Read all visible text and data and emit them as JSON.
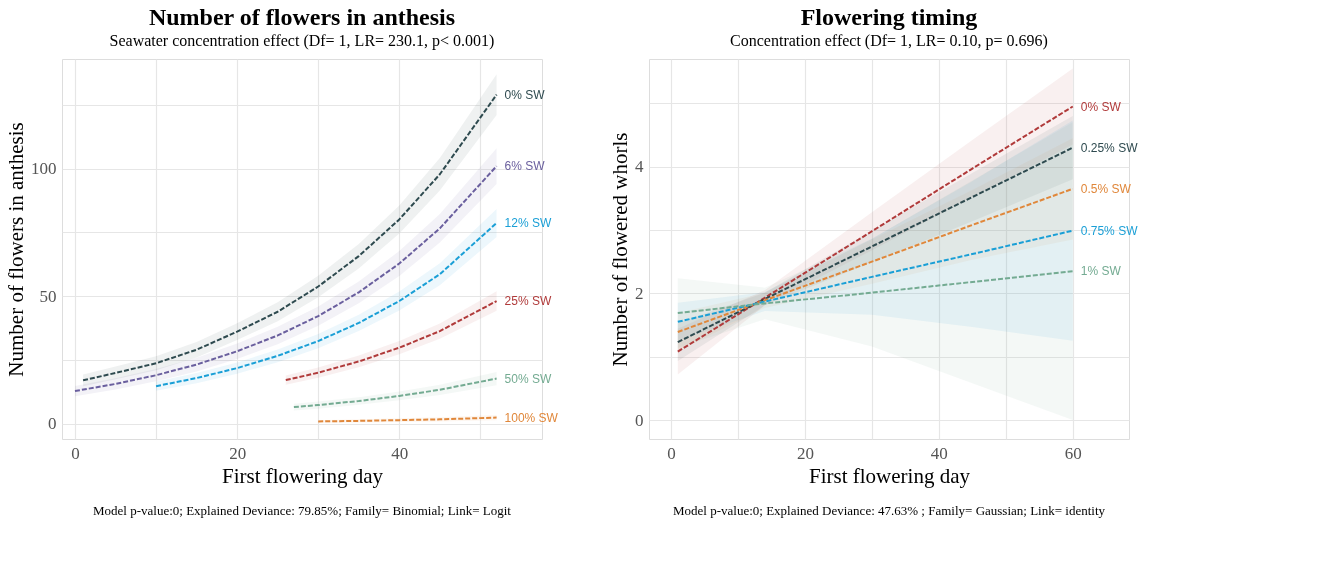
{
  "chart_data": [
    {
      "type": "line",
      "title": "Number of flowers in anthesis",
      "subtitle": "Seawater concentration effect (Df= 1, LR= 230.1, p< 0.001)",
      "xlabel": "First flowering day",
      "ylabel": "Number of flowers in anthesis",
      "annotations": [
        "Model p-value:0; Explained Deviance: 79.85%; Family= Binomial; Link= Logit"
      ],
      "xlim": [
        -1.6,
        57.6
      ],
      "ylim": [
        -6,
        143
      ],
      "xticks": [
        0,
        {
          "value": 10,
          "label": null
        },
        20,
        {
          "value": 30,
          "label": null
        },
        40,
        {
          "value": 50,
          "label": null
        }
      ],
      "yticks": [
        0,
        {
          "value": 25,
          "label": null
        },
        50,
        {
          "value": 75,
          "label": null
        },
        100,
        {
          "value": 125,
          "label": null
        }
      ],
      "grid": true,
      "legend": false,
      "line_style": "dashed",
      "series": [
        {
          "name": "0% SW",
          "color": "#2e4a4f",
          "x": [
            1,
            5,
            10,
            15,
            20,
            25,
            30,
            35,
            40,
            45,
            52
          ],
          "values": [
            17,
            19.9,
            23.7,
            29.0,
            36.1,
            43.9,
            53.8,
            65.7,
            80.1,
            97.8,
            129
          ],
          "lower": [
            14.7,
            17.4,
            21.0,
            26.0,
            32.8,
            40.2,
            49.6,
            60.9,
            74.6,
            91.4,
            121
          ],
          "upper": [
            19.3,
            22.4,
            26.4,
            32.0,
            39.4,
            47.6,
            58.0,
            70.5,
            85.6,
            104.2,
            137
          ]
        },
        {
          "name": "6% SW",
          "color": "#6a5f9e",
          "x": [
            0,
            5,
            10,
            15,
            20,
            25,
            30,
            35,
            40,
            45,
            52
          ],
          "values": [
            12.8,
            15.6,
            19.0,
            23.2,
            28.4,
            34.6,
            42.2,
            51.5,
            62.8,
            76.6,
            101
          ],
          "lower": [
            10.8,
            13.4,
            16.6,
            20.5,
            25.4,
            31.2,
            38.4,
            47.2,
            57.9,
            71.0,
            94
          ],
          "upper": [
            14.8,
            17.8,
            21.4,
            25.9,
            31.4,
            38.0,
            46.0,
            55.8,
            67.7,
            82.2,
            108
          ]
        },
        {
          "name": "12% SW",
          "color": "#1a9fd6",
          "x": [
            10,
            15,
            20,
            25,
            30,
            35,
            40,
            45,
            52
          ],
          "values": [
            14.7,
            17.9,
            21.8,
            26.6,
            32.4,
            39.5,
            48.1,
            58.6,
            78.7
          ],
          "lower": [
            12.9,
            15.9,
            19.6,
            24.1,
            29.6,
            36.3,
            44.4,
            54.3,
            73.2
          ],
          "upper": [
            16.5,
            19.9,
            24.0,
            29.1,
            35.2,
            42.7,
            51.8,
            62.9,
            84.2
          ]
        },
        {
          "name": "25% SW",
          "color": "#b03a3a",
          "x": [
            26,
            30,
            35,
            40,
            45,
            52
          ],
          "values": [
            17.1,
            20.0,
            24.4,
            29.8,
            36.3,
            48.1
          ],
          "lower": [
            15.3,
            18.0,
            22.1,
            27.2,
            33.3,
            44.3
          ],
          "upper": [
            18.9,
            22.0,
            26.7,
            32.4,
            39.3,
            51.9
          ]
        },
        {
          "name": "50% SW",
          "color": "#74ab92",
          "x": [
            27,
            30,
            35,
            40,
            45,
            52
          ],
          "values": [
            6.5,
            7.3,
            8.9,
            10.9,
            13.3,
            17.7
          ],
          "lower": [
            5.2,
            5.9,
            7.4,
            9.2,
            11.3,
            15.1
          ],
          "upper": [
            7.8,
            8.7,
            10.4,
            12.6,
            15.3,
            20.3
          ]
        },
        {
          "name": "100% SW",
          "color": "#e0873a",
          "x": [
            30,
            35,
            40,
            45,
            52
          ],
          "values": [
            0.9,
            1.1,
            1.4,
            1.7,
            2.4
          ],
          "lower": [
            0.4,
            0.5,
            0.7,
            0.9,
            1.4
          ],
          "upper": [
            1.4,
            1.7,
            2.1,
            2.5,
            3.4
          ]
        }
      ]
    },
    {
      "type": "line",
      "title": "Flowering timing",
      "subtitle": "Concentration effect (Df= 1, LR= 0.10, p= 0.696)",
      "xlabel": "First flowering day",
      "ylabel": "Number of flowered whorls",
      "annotations": [
        "Model p-value:0; Explained Deviance: 47.63% ; Family= Gaussian; Link= identity"
      ],
      "xlim": [
        -3.3,
        68.4
      ],
      "ylim": [
        -0.3,
        5.7
      ],
      "xticks": [
        0,
        {
          "value": 10,
          "label": null
        },
        20,
        {
          "value": 30,
          "label": null
        },
        40,
        {
          "value": 50,
          "label": null
        },
        60
      ],
      "yticks": [
        0,
        {
          "value": 1,
          "label": null
        },
        2,
        {
          "value": 3,
          "label": null
        },
        4,
        {
          "value": 5,
          "label": null
        }
      ],
      "grid": true,
      "legend": false,
      "line_style": "dashed",
      "series": [
        {
          "name": "0% SW",
          "color": "#b03a3a",
          "x": [
            1,
            14,
            30,
            45,
            60
          ],
          "values": [
            1.08,
            1.93,
            2.98,
            3.97,
            4.95
          ],
          "lower": [
            0.72,
            1.81,
            2.68,
            3.52,
            4.35
          ],
          "upper": [
            1.44,
            2.05,
            3.28,
            4.42,
            5.55
          ]
        },
        {
          "name": "0.25% SW",
          "color": "#2e4a4f",
          "x": [
            1,
            14,
            30,
            45,
            60
          ],
          "values": [
            1.23,
            1.91,
            2.74,
            3.52,
            4.3
          ],
          "lower": [
            0.93,
            1.81,
            2.49,
            3.14,
            3.8
          ],
          "upper": [
            1.53,
            2.01,
            2.99,
            3.9,
            4.8
          ]
        },
        {
          "name": "0.5% SW",
          "color": "#e0873a",
          "x": [
            1,
            14,
            30,
            45,
            60
          ],
          "values": [
            1.39,
            1.89,
            2.5,
            3.08,
            3.65
          ],
          "lower": [
            1.09,
            1.77,
            2.15,
            2.53,
            2.85
          ],
          "upper": [
            1.69,
            2.01,
            2.85,
            3.63,
            4.45
          ]
        },
        {
          "name": "0.75% SW",
          "color": "#1a9fd6",
          "x": [
            1,
            14,
            30,
            45,
            60
          ],
          "values": [
            1.55,
            1.87,
            2.26,
            2.62,
            2.99
          ],
          "lower": [
            1.25,
            1.72,
            1.66,
            1.47,
            1.25
          ],
          "upper": [
            1.85,
            2.02,
            2.86,
            3.77,
            4.73
          ]
        },
        {
          "name": "1% SW",
          "color": "#74ab92",
          "x": [
            1,
            14,
            30,
            45,
            60
          ],
          "values": [
            1.69,
            1.84,
            2.01,
            2.18,
            2.35
          ],
          "lower": [
            1.14,
            1.59,
            1.16,
            0.58,
            0.0
          ],
          "upper": [
            2.24,
            2.09,
            2.86,
            3.78,
            4.7
          ]
        }
      ]
    }
  ]
}
